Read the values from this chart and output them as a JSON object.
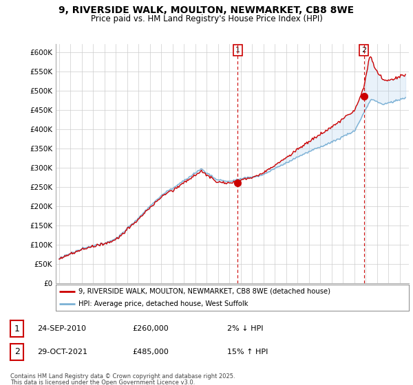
{
  "title": "9, RIVERSIDE WALK, MOULTON, NEWMARKET, CB8 8WE",
  "subtitle": "Price paid vs. HM Land Registry's House Price Index (HPI)",
  "title_fontsize": 10,
  "subtitle_fontsize": 8.5,
  "background_color": "#ffffff",
  "grid_color": "#cccccc",
  "hpi_color": "#7ab0d4",
  "hpi_fill_color": "#ddeeff",
  "price_color": "#cc0000",
  "ylim": [
    0,
    620000
  ],
  "yticks": [
    0,
    50000,
    100000,
    150000,
    200000,
    250000,
    300000,
    350000,
    400000,
    450000,
    500000,
    550000,
    600000
  ],
  "ytick_labels": [
    "£0",
    "£50K",
    "£100K",
    "£150K",
    "£200K",
    "£250K",
    "£300K",
    "£350K",
    "£400K",
    "£450K",
    "£500K",
    "£550K",
    "£600K"
  ],
  "sale1_date": 2010.73,
  "sale1_price": 260000,
  "sale2_date": 2021.83,
  "sale2_price": 485000,
  "legend_line1": "9, RIVERSIDE WALK, MOULTON, NEWMARKET, CB8 8WE (detached house)",
  "legend_line2": "HPI: Average price, detached house, West Suffolk",
  "footer1": "Contains HM Land Registry data © Crown copyright and database right 2025.",
  "footer2": "This data is licensed under the Open Government Licence v3.0.",
  "table_row1": [
    "1",
    "24-SEP-2010",
    "£260,000",
    "2% ↓ HPI"
  ],
  "table_row2": [
    "2",
    "29-OCT-2021",
    "£485,000",
    "15% ↑ HPI"
  ]
}
